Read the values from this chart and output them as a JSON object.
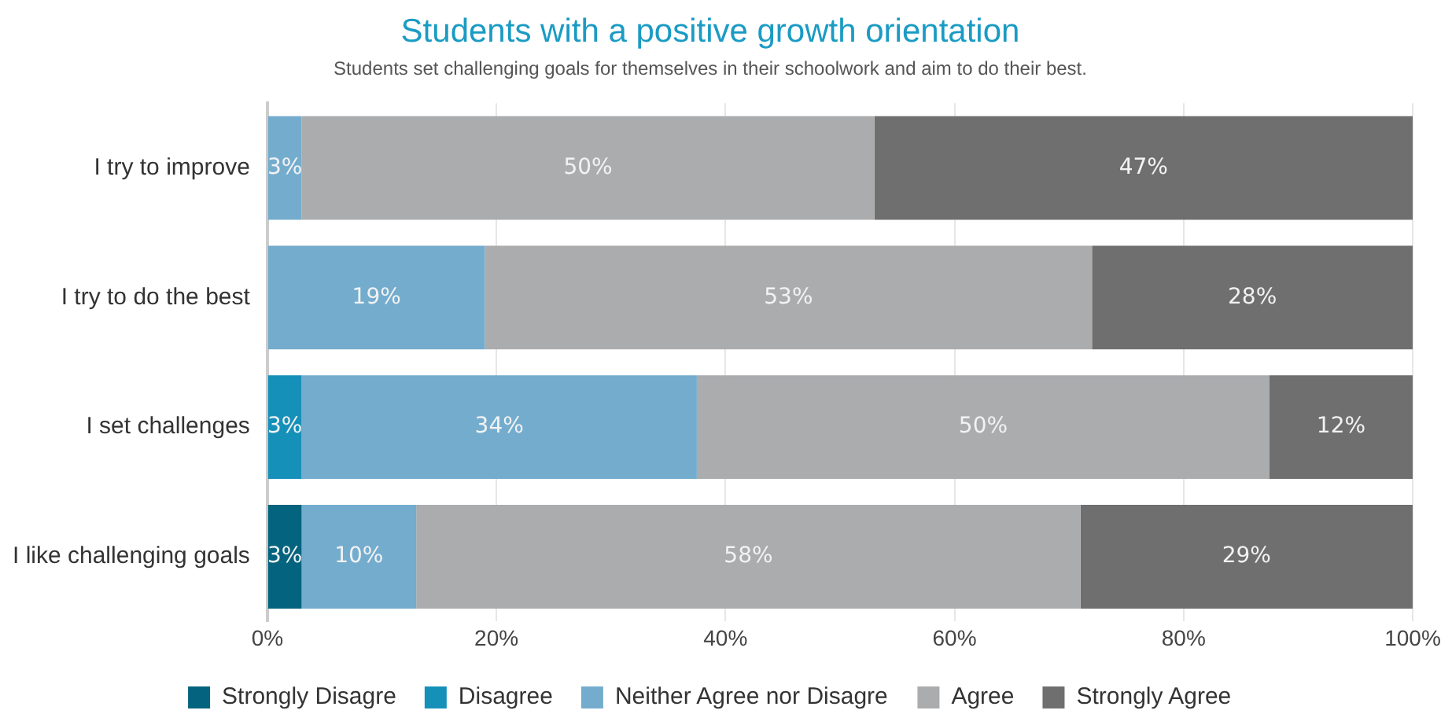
{
  "chart_data": {
    "type": "bar",
    "orientation": "horizontal",
    "stacked": true,
    "title": "Students with a positive growth orientation",
    "subtitle": "Students set challenging goals for themselves in their schoolwork and aim to do their best.",
    "categories": [
      "I try to improve",
      "I try to do the best",
      "I set challenges",
      "I like challenging goals"
    ],
    "series": [
      {
        "name": "Strongly Disagre",
        "color": "#04637e",
        "values": [
          null,
          null,
          null,
          3
        ],
        "value_labels": [
          null,
          null,
          null,
          "3%"
        ]
      },
      {
        "name": "Disagree",
        "color": "#1591b9",
        "values": [
          null,
          null,
          3,
          null
        ],
        "value_labels": [
          null,
          null,
          "3%",
          null
        ]
      },
      {
        "name": "Neither Agree nor Disagre",
        "color": "#74acce",
        "values": [
          3,
          19,
          34.5,
          10
        ],
        "value_labels": [
          "3%",
          "19%",
          "34%",
          "10%"
        ]
      },
      {
        "name": "Agree",
        "color": "#abacae",
        "values": [
          50,
          53,
          50,
          58
        ],
        "value_labels": [
          "50%",
          "53%",
          "50%",
          "58%"
        ]
      },
      {
        "name": "Strongly Agree",
        "color": "#6f6f6f",
        "values": [
          47,
          28,
          12.5,
          29
        ],
        "value_labels": [
          "47%",
          "28%",
          "12%",
          "29%"
        ]
      }
    ],
    "xlim": [
      0,
      100
    ],
    "xticks": [
      {
        "value": 0,
        "label": "0%"
      },
      {
        "value": 20,
        "label": "20%"
      },
      {
        "value": 40,
        "label": "40%"
      },
      {
        "value": 60,
        "label": "60%"
      },
      {
        "value": 80,
        "label": "80%"
      },
      {
        "value": 100,
        "label": "100%"
      }
    ],
    "grid": "x",
    "legend": "bottom"
  }
}
